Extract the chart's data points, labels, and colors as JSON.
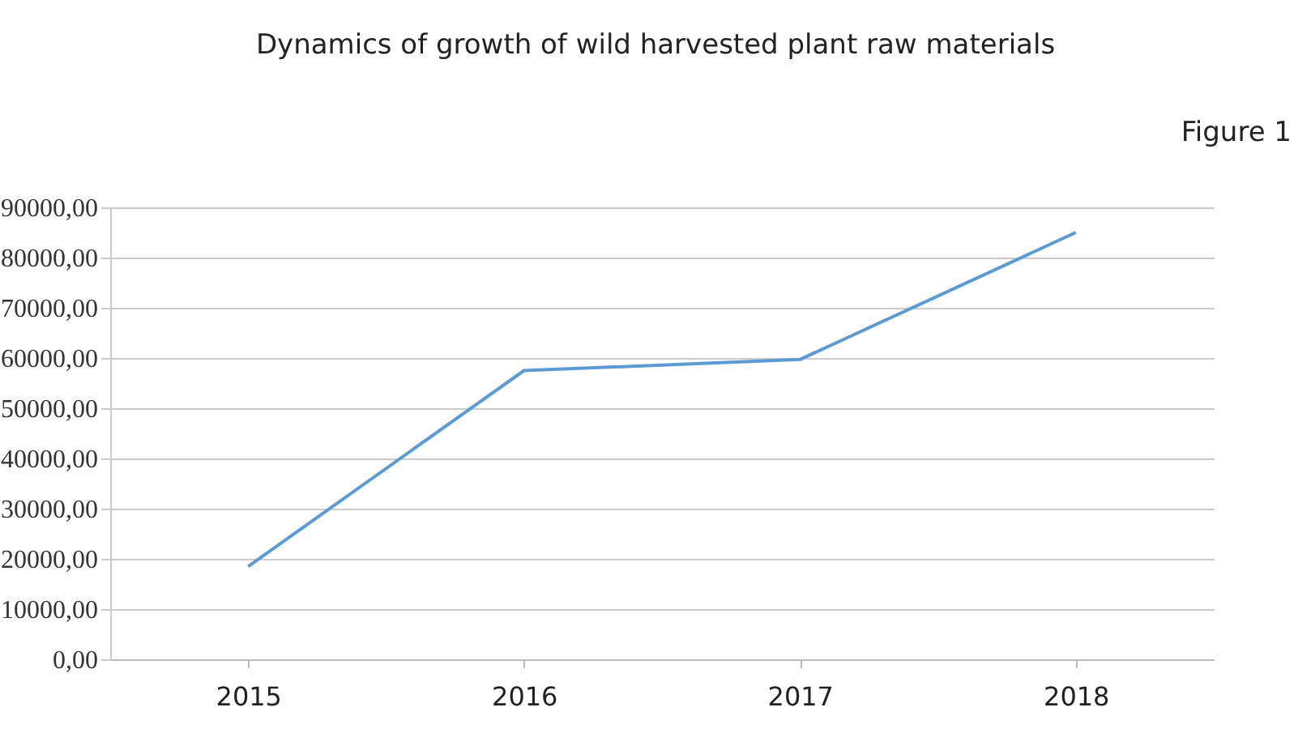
{
  "chart_data": {
    "type": "line",
    "title": "Dynamics of growth of wild harvested plant raw materials",
    "annotations": [
      "Figure 1"
    ],
    "categories": [
      "2015",
      "2016",
      "2017",
      "2018"
    ],
    "series": [
      {
        "color": "#5b9bd5",
        "values": [
          18500,
          57500,
          59700,
          85000
        ]
      }
    ],
    "ylim": [
      0,
      90000
    ],
    "yticks": [
      {
        "value": 0,
        "label": "0,00"
      },
      {
        "value": 10000,
        "label": "10000,00"
      },
      {
        "value": 20000,
        "label": "20000,00"
      },
      {
        "value": 30000,
        "label": "30000,00"
      },
      {
        "value": 40000,
        "label": "40000,00"
      },
      {
        "value": 50000,
        "label": "50000,00"
      },
      {
        "value": 60000,
        "label": "60000,00"
      },
      {
        "value": 70000,
        "label": "70000,00"
      },
      {
        "value": 80000,
        "label": "80000,00"
      },
      {
        "value": 90000,
        "label": "90000,00"
      }
    ],
    "grid": "y",
    "marker": "none",
    "line_style": "solid",
    "legend": false
  }
}
